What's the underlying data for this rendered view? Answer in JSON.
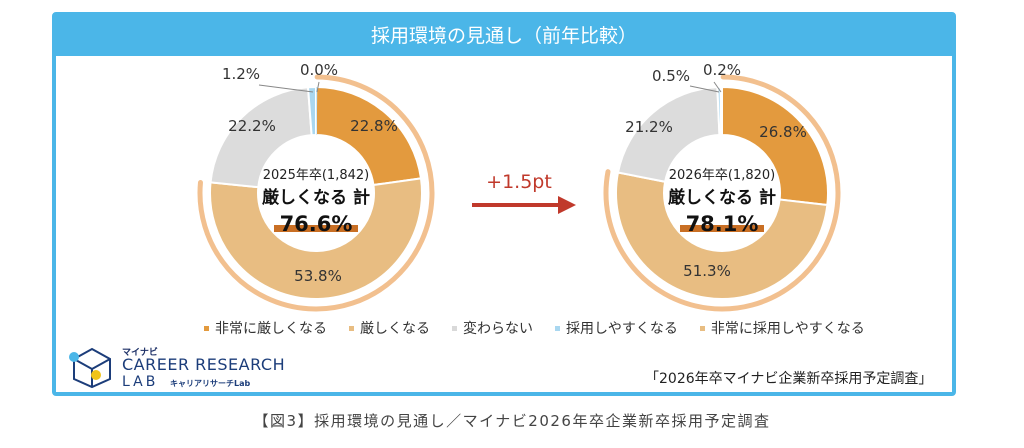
{
  "title": "採用環境の見通し（前年比較）",
  "legend": [
    {
      "label": "非常に厳しくなる",
      "color": "#e39a3e"
    },
    {
      "label": "厳しくなる",
      "color": "#e8bd82"
    },
    {
      "label": "変わらない",
      "color": "#d9d9d9"
    },
    {
      "label": "採用しやすくなる",
      "color": "#a9d7f0"
    },
    {
      "label": "非常に採用しやすくなる",
      "color": "#e8bd82"
    }
  ],
  "chart_data": [
    {
      "type": "pie",
      "center_label": "2025年卒(1,842)",
      "total_label": "厳しくなる 計",
      "total_value": "76.6%",
      "slices": [
        {
          "name": "非常に厳しくなる",
          "value": 22.8,
          "label": "22.8%",
          "color": "#e39a3e"
        },
        {
          "name": "厳しくなる",
          "value": 53.8,
          "label": "53.8%",
          "color": "#e8bd82"
        },
        {
          "name": "変わらない",
          "value": 22.2,
          "label": "22.2%",
          "color": "#dcdcdc"
        },
        {
          "name": "採用しやすくなる",
          "value": 1.2,
          "label": "1.2%",
          "color": "#a9d7f0"
        },
        {
          "name": "非常に採用しやすくなる",
          "value": 0.0,
          "label": "0.0%",
          "color": "#c9e8f8"
        }
      ]
    },
    {
      "type": "pie",
      "center_label": "2026年卒(1,820)",
      "total_label": "厳しくなる 計",
      "total_value": "78.1%",
      "slices": [
        {
          "name": "非常に厳しくなる",
          "value": 26.8,
          "label": "26.8%",
          "color": "#e39a3e"
        },
        {
          "name": "厳しくなる",
          "value": 51.3,
          "label": "51.3%",
          "color": "#e8bd82"
        },
        {
          "name": "変わらない",
          "value": 21.2,
          "label": "21.2%",
          "color": "#dcdcdc"
        },
        {
          "name": "採用しやすくなる",
          "value": 0.5,
          "label": "0.5%",
          "color": "#a9d7f0"
        },
        {
          "name": "非常に採用しやすくなる",
          "value": 0.2,
          "label": "0.2%",
          "color": "#c9e8f8"
        }
      ]
    }
  ],
  "difference": "+1.5pt",
  "outer_ring_color": "#f2c08f",
  "arrow_color": "#c0392b",
  "logo": {
    "maker": "マイナビ",
    "main": "CAREER RESEARCH",
    "lab": "LAB",
    "sub": "キャリアリサーチLab"
  },
  "source": "「2026年卒マイナビ企業新卒採用予定調査」",
  "caption": "【図3】採用環境の見通し／マイナビ2026年卒企業新卒採用予定調査"
}
